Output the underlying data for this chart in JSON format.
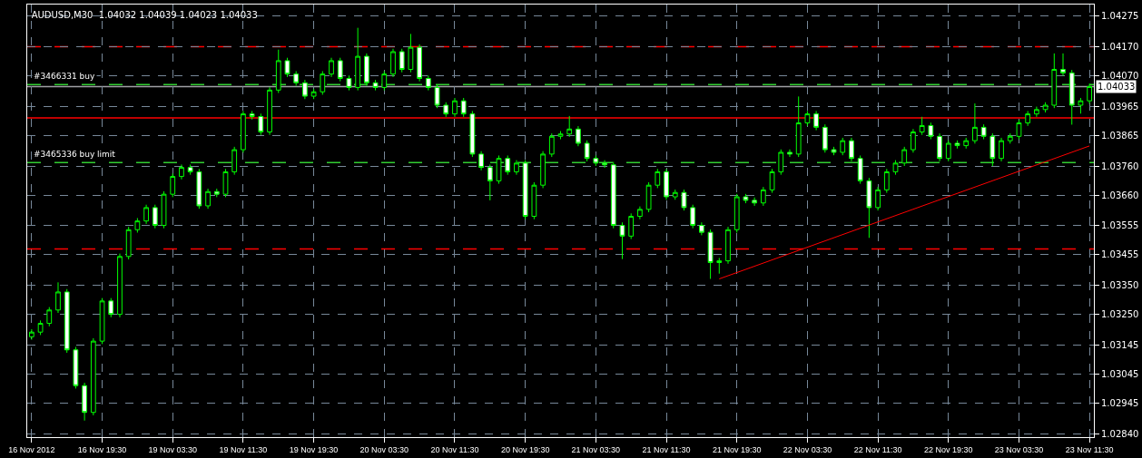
{
  "chart_data": {
    "type": "candlestick",
    "title": "AUDUSD,M30  1.04032 1.04039 1.04023 1.04033",
    "categories": [
      "16 Nov 2012",
      null,
      null,
      null,
      null,
      null,
      null,
      null,
      "16 Nov 19:30",
      null,
      null,
      null,
      null,
      null,
      null,
      null,
      "19 Nov 03:30",
      null,
      null,
      null,
      null,
      null,
      null,
      null,
      "19 Nov 11:30",
      null,
      null,
      null,
      null,
      null,
      null,
      null,
      "19 Nov 19:30",
      null,
      null,
      null,
      null,
      null,
      null,
      null,
      "20 Nov 03:30",
      null,
      null,
      null,
      null,
      null,
      null,
      null,
      "20 Nov 11:30",
      null,
      null,
      null,
      null,
      null,
      null,
      null,
      "20 Nov 19:30",
      null,
      null,
      null,
      null,
      null,
      null,
      null,
      "21 Nov 03:30",
      null,
      null,
      null,
      null,
      null,
      null,
      null,
      "21 Nov 11:30",
      null,
      null,
      null,
      null,
      null,
      null,
      null,
      "21 Nov 19:30",
      null,
      null,
      null,
      null,
      null,
      null,
      null,
      "22 Nov 03:30",
      null,
      null,
      null,
      null,
      null,
      null,
      null,
      "22 Nov 11:30",
      null,
      null,
      null,
      null,
      null,
      null,
      null,
      "22 Nov 19:30",
      null,
      null,
      null,
      null,
      null,
      null,
      null,
      "23 Nov 03:30",
      null,
      null,
      null,
      null,
      null,
      null,
      null,
      "23 Nov 11:30"
    ],
    "series": [
      {
        "color": "#00ff00",
        "ohlc": [
          [
            1.03173,
            1.03199,
            1.03163,
            1.03189
          ],
          [
            1.03189,
            1.03229,
            1.03179,
            1.03219
          ],
          [
            1.03219,
            1.03275,
            1.03209,
            1.03265
          ],
          [
            1.03265,
            1.0336,
            1.03255,
            1.03327
          ],
          [
            1.03327,
            1.03337,
            1.03118,
            1.03128
          ],
          [
            1.03128,
            1.03138,
            1.02995,
            1.03005
          ],
          [
            1.03005,
            1.03015,
            1.02885,
            1.02913
          ],
          [
            1.02913,
            1.03168,
            1.02903,
            1.03158
          ],
          [
            1.03158,
            1.03306,
            1.03148,
            1.03296
          ],
          [
            1.03296,
            1.03306,
            1.0324,
            1.0325
          ],
          [
            1.0325,
            1.03459,
            1.0324,
            1.03449
          ],
          [
            1.03449,
            1.03551,
            1.03439,
            1.03541
          ],
          [
            1.03541,
            1.03581,
            1.03531,
            1.03571
          ],
          [
            1.03571,
            1.03627,
            1.03561,
            1.03617
          ],
          [
            1.03617,
            1.03627,
            1.03546,
            1.03556
          ],
          [
            1.03556,
            1.03673,
            1.03546,
            1.03663
          ],
          [
            1.03663,
            1.03734,
            1.03653,
            1.03724
          ],
          [
            1.03724,
            1.03765,
            1.03714,
            1.03755
          ],
          [
            1.03755,
            1.03765,
            1.0373,
            1.0374
          ],
          [
            1.0374,
            1.0375,
            1.03613,
            1.03623
          ],
          [
            1.03623,
            1.03682,
            1.03613,
            1.03672
          ],
          [
            1.03672,
            1.03682,
            1.03653,
            1.03663
          ],
          [
            1.03663,
            1.0375,
            1.03653,
            1.0374
          ],
          [
            1.0374,
            1.03826,
            1.0373,
            1.03816
          ],
          [
            1.03816,
            1.03949,
            1.03806,
            1.03939
          ],
          [
            1.03939,
            1.03949,
            1.0392,
            1.0393
          ],
          [
            1.0393,
            1.0394,
            1.03867,
            1.03877
          ],
          [
            1.03877,
            1.04031,
            1.03867,
            1.04021
          ],
          [
            1.04021,
            1.0416,
            1.04011,
            1.04122
          ],
          [
            1.04122,
            1.04132,
            1.04066,
            1.04076
          ],
          [
            1.04076,
            1.04086,
            1.04036,
            1.04046
          ],
          [
            1.04046,
            1.04056,
            1.0399,
            1.04
          ],
          [
            1.04,
            1.04025,
            1.0399,
            1.04015
          ],
          [
            1.04015,
            1.04086,
            1.04005,
            1.04076
          ],
          [
            1.04076,
            1.04132,
            1.04066,
            1.04122
          ],
          [
            1.04122,
            1.04132,
            1.04051,
            1.04061
          ],
          [
            1.04061,
            1.04071,
            1.0402,
            1.0403
          ],
          [
            1.0403,
            1.04235,
            1.0402,
            1.04137
          ],
          [
            1.04137,
            1.04147,
            1.04036,
            1.04046
          ],
          [
            1.04046,
            1.04056,
            1.0402,
            1.0403
          ],
          [
            1.0403,
            1.04086,
            1.0402,
            1.04076
          ],
          [
            1.04076,
            1.04163,
            1.04066,
            1.04153
          ],
          [
            1.04153,
            1.04163,
            1.04082,
            1.04092
          ],
          [
            1.04092,
            1.04214,
            1.04082,
            1.04168
          ],
          [
            1.04168,
            1.04178,
            1.04051,
            1.04061
          ],
          [
            1.04061,
            1.04071,
            1.0402,
            1.0403
          ],
          [
            1.0403,
            1.0404,
            1.03959,
            1.03969
          ],
          [
            1.03969,
            1.03979,
            1.03929,
            1.03939
          ],
          [
            1.03939,
            1.03994,
            1.03929,
            1.03984
          ],
          [
            1.03984,
            1.03994,
            1.03929,
            1.03939
          ],
          [
            1.03939,
            1.03949,
            1.03791,
            1.03801
          ],
          [
            1.03801,
            1.03811,
            1.03745,
            1.03755
          ],
          [
            1.03755,
            1.03765,
            1.03642,
            1.03709
          ],
          [
            1.03709,
            1.03796,
            1.03699,
            1.03786
          ],
          [
            1.03786,
            1.03796,
            1.0373,
            1.0374
          ],
          [
            1.0374,
            1.0378,
            1.0373,
            1.0377
          ],
          [
            1.0377,
            1.0378,
            1.03577,
            1.03587
          ],
          [
            1.03587,
            1.03704,
            1.03577,
            1.03694
          ],
          [
            1.03694,
            1.03811,
            1.03684,
            1.03801
          ],
          [
            1.03801,
            1.03872,
            1.03791,
            1.03862
          ],
          [
            1.03862,
            1.0388,
            1.03852,
            1.0387
          ],
          [
            1.0387,
            1.03932,
            1.0386,
            1.03887
          ],
          [
            1.03887,
            1.03897,
            1.03828,
            1.03838
          ],
          [
            1.03838,
            1.03848,
            1.03776,
            1.03786
          ],
          [
            1.03786,
            1.03796,
            1.0376,
            1.0377
          ],
          [
            1.0377,
            1.0378,
            1.03754,
            1.03764
          ],
          [
            1.03764,
            1.03774,
            1.03546,
            1.03556
          ],
          [
            1.03556,
            1.03566,
            1.0344,
            1.03519
          ],
          [
            1.03519,
            1.03597,
            1.03509,
            1.03587
          ],
          [
            1.03587,
            1.03621,
            1.03577,
            1.03611
          ],
          [
            1.03611,
            1.03704,
            1.03601,
            1.03694
          ],
          [
            1.03694,
            1.0375,
            1.03684,
            1.0374
          ],
          [
            1.0374,
            1.0375,
            1.03644,
            1.03654
          ],
          [
            1.03654,
            1.03679,
            1.03644,
            1.03669
          ],
          [
            1.03669,
            1.03679,
            1.03607,
            1.03617
          ],
          [
            1.03617,
            1.03627,
            1.03546,
            1.03556
          ],
          [
            1.03556,
            1.03566,
            1.03522,
            1.03532
          ],
          [
            1.03532,
            1.03542,
            1.03372,
            1.03428
          ],
          [
            1.03428,
            1.03444,
            1.0339,
            1.03434
          ],
          [
            1.03434,
            1.03551,
            1.03424,
            1.03541
          ],
          [
            1.03541,
            1.03664,
            1.03531,
            1.03654
          ],
          [
            1.03654,
            1.03664,
            1.03632,
            1.03642
          ],
          [
            1.03642,
            1.03652,
            1.03623,
            1.03633
          ],
          [
            1.03633,
            1.03688,
            1.03623,
            1.03678
          ],
          [
            1.03678,
            1.0375,
            1.03668,
            1.0374
          ],
          [
            1.0374,
            1.03817,
            1.0373,
            1.03807
          ],
          [
            1.03807,
            1.03817,
            1.03791,
            1.03801
          ],
          [
            1.03801,
            1.03999,
            1.03791,
            1.03908
          ],
          [
            1.03908,
            1.03949,
            1.03898,
            1.03939
          ],
          [
            1.03939,
            1.03949,
            1.03883,
            1.03893
          ],
          [
            1.03893,
            1.03903,
            1.03806,
            1.03816
          ],
          [
            1.03816,
            1.03826,
            1.03797,
            1.03807
          ],
          [
            1.03807,
            1.03857,
            1.03797,
            1.03847
          ],
          [
            1.03847,
            1.03857,
            1.03776,
            1.03786
          ],
          [
            1.03786,
            1.03796,
            1.03699,
            1.03709
          ],
          [
            1.03709,
            1.03719,
            1.03513,
            1.03617
          ],
          [
            1.03617,
            1.03688,
            1.03607,
            1.03678
          ],
          [
            1.03678,
            1.0375,
            1.03668,
            1.0374
          ],
          [
            1.0374,
            1.0378,
            1.0373,
            1.0377
          ],
          [
            1.0377,
            1.03826,
            1.0376,
            1.03816
          ],
          [
            1.03816,
            1.03887,
            1.03806,
            1.03877
          ],
          [
            1.03877,
            1.03929,
            1.03867,
            1.03899
          ],
          [
            1.03899,
            1.03909,
            1.03852,
            1.03862
          ],
          [
            1.03862,
            1.03872,
            1.03776,
            1.03786
          ],
          [
            1.03786,
            1.03848,
            1.03776,
            1.03838
          ],
          [
            1.03838,
            1.03848,
            1.0382,
            1.0383
          ],
          [
            1.0383,
            1.03857,
            1.0382,
            1.03847
          ],
          [
            1.03847,
            1.03975,
            1.03837,
            1.03893
          ],
          [
            1.03893,
            1.03903,
            1.03852,
            1.03862
          ],
          [
            1.03862,
            1.03872,
            1.0376,
            1.03786
          ],
          [
            1.03786,
            1.03857,
            1.03776,
            1.03847
          ],
          [
            1.03847,
            1.03872,
            1.03837,
            1.03862
          ],
          [
            1.03862,
            1.03918,
            1.03852,
            1.03908
          ],
          [
            1.03908,
            1.03949,
            1.03898,
            1.03939
          ],
          [
            1.03939,
            1.03964,
            1.03929,
            1.03954
          ],
          [
            1.03954,
            1.03979,
            1.03944,
            1.03969
          ],
          [
            1.03969,
            1.04147,
            1.03959,
            1.04092
          ],
          [
            1.04092,
            1.04147,
            1.0407,
            1.0408
          ],
          [
            1.0408,
            1.0409,
            1.03902,
            1.03969
          ],
          [
            1.03969,
            1.03994,
            1.0394,
            1.03984
          ],
          [
            1.03984,
            1.04043,
            1.03974,
            1.04033
          ]
        ]
      },
      {
        "type": "line",
        "color": "#ff0000",
        "values": [
          null,
          null,
          null,
          null,
          null,
          null,
          null,
          null,
          null,
          null,
          null,
          null,
          null,
          null,
          null,
          null,
          null,
          null,
          null,
          null,
          null,
          null,
          null,
          null,
          null,
          null,
          null,
          null,
          null,
          null,
          null,
          null,
          null,
          null,
          null,
          null,
          null,
          null,
          null,
          null,
          null,
          null,
          null,
          null,
          null,
          null,
          null,
          null,
          null,
          null,
          null,
          null,
          null,
          null,
          null,
          null,
          null,
          null,
          null,
          null,
          null,
          null,
          null,
          null,
          null,
          null,
          null,
          null,
          null,
          null,
          null,
          null,
          null,
          null,
          null,
          null,
          null,
          null,
          1.03372,
          null,
          null,
          null,
          null,
          null,
          null,
          null,
          null,
          null,
          null,
          null,
          null,
          null,
          null,
          null,
          null,
          null,
          null,
          null,
          null,
          null,
          null,
          null,
          null,
          null,
          null,
          null,
          null,
          null,
          null,
          null,
          null,
          null,
          null,
          null,
          null,
          null,
          null,
          null,
          null,
          null,
          1.03829
        ]
      }
    ],
    "ylim": [
      1.02828,
      1.04315
    ],
    "yticks": [
      1.04275,
      {
        "value": 1.0417,
        "label": "1.04170"
      },
      {
        "value": 1.0407,
        "label": "1.04070"
      },
      1.03965,
      1.03865,
      {
        "value": 1.0376,
        "label": "1.03760"
      },
      {
        "value": 1.0366,
        "label": "1.03660"
      },
      1.03555,
      1.03455,
      {
        "value": 1.0335,
        "label": "1.03350"
      },
      {
        "value": 1.0325,
        "label": "1.03250"
      },
      1.03145,
      1.03045,
      1.02945,
      {
        "value": 1.0284,
        "label": "1.02840"
      }
    ],
    "ref_lines": [
      {
        "axis": "y",
        "value": 1.0417,
        "color": "#ff0000",
        "line_style": "dashed"
      },
      {
        "axis": "y",
        "value": 1.0404,
        "label": "#3466331 buy",
        "color": "#32cd32",
        "line_style": "dashed"
      },
      {
        "axis": "y",
        "value": 1.04033,
        "label": "1.04033",
        "color": "#a0a0a4",
        "line_style": "solid"
      },
      {
        "axis": "y",
        "value": 1.03925,
        "color": "#ff0000",
        "line_style": "solid"
      },
      {
        "axis": "y",
        "value": 1.03772,
        "label": "#3465336 buy limit",
        "color": "#32cd32",
        "line_style": "dashed"
      },
      {
        "axis": "y",
        "value": 1.03475,
        "color": "#ff0000",
        "line_style": "dashed"
      }
    ],
    "grid": true
  }
}
